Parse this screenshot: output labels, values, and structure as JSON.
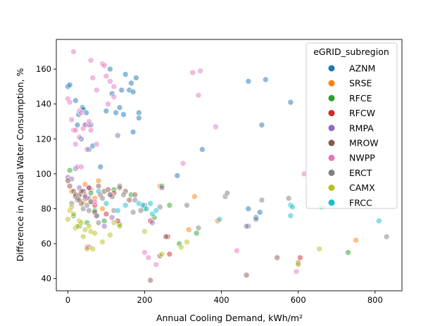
{
  "chart_data": {
    "type": "scatter",
    "xlabel": "Annual Cooling Demand, kWh/m²",
    "ylabel": "Difference in Annual Water Consumption, %",
    "xlim": [
      -30,
      870
    ],
    "ylim": [
      33,
      177
    ],
    "xticks": [
      0,
      200,
      400,
      600,
      800
    ],
    "yticks": [
      40,
      60,
      80,
      100,
      120,
      140,
      160
    ],
    "legend_title": "eGRID_subregion",
    "legend_position": "top-right",
    "grid": false,
    "series": [
      {
        "name": "AZNM",
        "color": "#1f77b4",
        "points": [
          [
            0,
            150
          ],
          [
            5,
            151
          ],
          [
            20,
            142
          ],
          [
            25,
            128
          ],
          [
            28,
            134
          ],
          [
            35,
            120
          ],
          [
            38,
            138
          ],
          [
            40,
            137
          ],
          [
            45,
            128
          ],
          [
            48,
            135
          ],
          [
            55,
            114
          ],
          [
            60,
            128
          ],
          [
            65,
            116
          ],
          [
            85,
            104
          ],
          [
            100,
            136
          ],
          [
            110,
            160
          ],
          [
            115,
            146
          ],
          [
            125,
            135
          ],
          [
            135,
            138
          ],
          [
            140,
            148
          ],
          [
            145,
            134
          ],
          [
            150,
            157
          ],
          [
            160,
            148
          ],
          [
            165,
            152
          ],
          [
            170,
            124
          ],
          [
            170,
            147
          ],
          [
            178,
            155
          ],
          [
            185,
            135
          ],
          [
            185,
            132
          ],
          [
            285,
            99
          ],
          [
            350,
            114
          ],
          [
            470,
            153
          ],
          [
            505,
            128
          ],
          [
            515,
            154
          ],
          [
            580,
            141
          ],
          [
            500,
            78
          ],
          [
            470,
            80
          ],
          [
            490,
            75
          ]
        ]
      },
      {
        "name": "SRSE",
        "color": "#ff7f0e",
        "points": [
          [
            10,
            90
          ],
          [
            20,
            87
          ],
          [
            30,
            88
          ],
          [
            40,
            84
          ],
          [
            45,
            94
          ],
          [
            60,
            91
          ],
          [
            70,
            86
          ],
          [
            80,
            96
          ],
          [
            90,
            80
          ],
          [
            240,
            93
          ],
          [
            315,
            68
          ],
          [
            330,
            87
          ],
          [
            390,
            73
          ],
          [
            750,
            62
          ]
        ]
      },
      {
        "name": "RFCE",
        "color": "#2ca02c",
        "points": [
          [
            5,
            102
          ],
          [
            15,
            76
          ],
          [
            30,
            70
          ],
          [
            50,
            72
          ],
          [
            60,
            89
          ],
          [
            70,
            79
          ],
          [
            95,
            73
          ],
          [
            120,
            91
          ],
          [
            135,
            71
          ],
          [
            165,
            88
          ],
          [
            200,
            80
          ],
          [
            225,
            75
          ],
          [
            245,
            93
          ],
          [
            265,
            82
          ],
          [
            290,
            60
          ],
          [
            335,
            66
          ],
          [
            730,
            55
          ]
        ]
      },
      {
        "name": "RFCW",
        "color": "#d62728",
        "points": [
          [
            40,
            90
          ],
          [
            55,
            92
          ],
          [
            70,
            82
          ],
          [
            100,
            77
          ],
          [
            120,
            89
          ],
          [
            130,
            73
          ],
          [
            215,
            73
          ],
          [
            260,
            64
          ],
          [
            265,
            54
          ],
          [
            605,
            52
          ]
        ]
      },
      {
        "name": "RMPA",
        "color": "#9467bd",
        "points": [
          [
            0,
            98
          ],
          [
            10,
            97
          ],
          [
            20,
            103
          ],
          [
            30,
            92
          ],
          [
            45,
            86
          ],
          [
            55,
            92
          ],
          [
            75,
            76
          ],
          [
            95,
            70
          ],
          [
            110,
            88
          ],
          [
            115,
            75
          ],
          [
            130,
            122
          ],
          [
            220,
            72
          ],
          [
            245,
            92
          ],
          [
            470,
            70
          ]
        ]
      },
      {
        "name": "MROW",
        "color": "#8c564b",
        "points": [
          [
            0,
            96
          ],
          [
            5,
            93
          ],
          [
            15,
            90
          ],
          [
            20,
            87
          ],
          [
            25,
            85
          ],
          [
            30,
            88
          ],
          [
            35,
            83
          ],
          [
            40,
            90
          ],
          [
            50,
            86
          ],
          [
            55,
            58
          ],
          [
            60,
            84
          ],
          [
            70,
            78
          ],
          [
            80,
            93
          ],
          [
            85,
            88
          ],
          [
            95,
            90
          ],
          [
            105,
            91
          ],
          [
            115,
            87
          ],
          [
            135,
            93
          ],
          [
            150,
            90
          ],
          [
            160,
            85
          ],
          [
            175,
            88
          ],
          [
            215,
            39
          ],
          [
            240,
            53
          ],
          [
            255,
            64
          ],
          [
            465,
            42
          ],
          [
            545,
            52
          ],
          [
            600,
            49
          ]
        ]
      },
      {
        "name": "NWPP",
        "color": "#e377c2",
        "points": [
          [
            0,
            143
          ],
          [
            5,
            141
          ],
          [
            10,
            131
          ],
          [
            15,
            170
          ],
          [
            15,
            125
          ],
          [
            20,
            125
          ],
          [
            20,
            117
          ],
          [
            25,
            104
          ],
          [
            30,
            136
          ],
          [
            30,
            121
          ],
          [
            35,
            135
          ],
          [
            35,
            104
          ],
          [
            40,
            126
          ],
          [
            45,
            128
          ],
          [
            50,
            114
          ],
          [
            55,
            128
          ],
          [
            55,
            130
          ],
          [
            60,
            125
          ],
          [
            60,
            165
          ],
          [
            65,
            155
          ],
          [
            75,
            148
          ],
          [
            75,
            117
          ],
          [
            90,
            163
          ],
          [
            95,
            162
          ],
          [
            100,
            156
          ],
          [
            105,
            140
          ],
          [
            110,
            153
          ],
          [
            120,
            144
          ],
          [
            120,
            150
          ],
          [
            200,
            55
          ],
          [
            210,
            52
          ],
          [
            230,
            48
          ],
          [
            300,
            106
          ],
          [
            325,
            158
          ],
          [
            340,
            145
          ],
          [
            345,
            159
          ],
          [
            385,
            127
          ],
          [
            440,
            56
          ],
          [
            595,
            44
          ],
          [
            615,
            100
          ],
          [
            50,
            58
          ],
          [
            45,
            88
          ],
          [
            55,
            86
          ],
          [
            70,
            84
          ]
        ]
      },
      {
        "name": "ERCT",
        "color": "#7f7f7f",
        "points": [
          [
            10,
            83
          ],
          [
            20,
            88
          ],
          [
            25,
            86
          ],
          [
            30,
            85
          ],
          [
            35,
            90
          ],
          [
            40,
            80
          ],
          [
            45,
            87
          ],
          [
            50,
            82
          ],
          [
            55,
            79
          ],
          [
            60,
            84
          ],
          [
            75,
            76
          ],
          [
            80,
            72
          ],
          [
            90,
            86
          ],
          [
            110,
            88
          ],
          [
            120,
            79
          ],
          [
            135,
            92
          ],
          [
            145,
            88
          ],
          [
            170,
            78
          ],
          [
            175,
            85
          ],
          [
            190,
            79
          ],
          [
            200,
            82
          ],
          [
            240,
            81
          ],
          [
            310,
            82
          ],
          [
            340,
            69
          ],
          [
            410,
            87
          ],
          [
            415,
            89
          ],
          [
            465,
            70
          ],
          [
            490,
            74
          ],
          [
            505,
            85
          ],
          [
            575,
            86
          ],
          [
            830,
            64
          ]
        ]
      },
      {
        "name": "CAMX",
        "color": "#bcbd22",
        "points": [
          [
            0,
            74
          ],
          [
            5,
            79
          ],
          [
            10,
            81
          ],
          [
            15,
            77
          ],
          [
            20,
            69
          ],
          [
            25,
            70
          ],
          [
            30,
            73
          ],
          [
            35,
            72
          ],
          [
            40,
            64
          ],
          [
            45,
            68
          ],
          [
            50,
            57
          ],
          [
            55,
            70
          ],
          [
            60,
            67
          ],
          [
            65,
            57
          ],
          [
            70,
            66
          ],
          [
            90,
            61
          ],
          [
            110,
            65
          ],
          [
            120,
            72
          ],
          [
            135,
            70
          ],
          [
            200,
            67
          ],
          [
            245,
            54
          ],
          [
            295,
            58
          ],
          [
            310,
            61
          ],
          [
            655,
            57
          ],
          [
            600,
            48
          ]
        ]
      },
      {
        "name": "FRCC",
        "color": "#17becf",
        "points": [
          [
            80,
            90
          ],
          [
            100,
            83
          ],
          [
            130,
            79
          ],
          [
            150,
            82
          ],
          [
            185,
            83
          ],
          [
            195,
            82
          ],
          [
            205,
            80
          ],
          [
            215,
            83
          ],
          [
            220,
            77
          ],
          [
            230,
            79
          ],
          [
            395,
            74
          ],
          [
            580,
            82
          ],
          [
            580,
            76
          ],
          [
            585,
            81
          ],
          [
            660,
            81
          ],
          [
            810,
            73
          ]
        ]
      }
    ]
  }
}
